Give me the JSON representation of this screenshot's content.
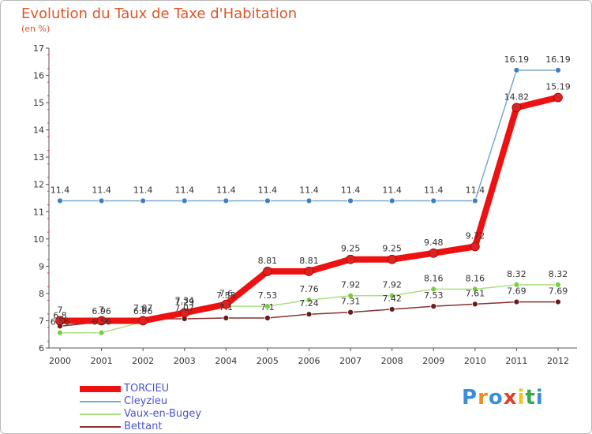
{
  "header": {
    "title": "Evolution du Taux de Taxe d'Habitation",
    "subtitle": "(en %)"
  },
  "brand": {
    "text": "Proxiti",
    "colors": [
      "#3a8fd8",
      "#f08a1c",
      "#3a8fd8",
      "#e83a2a",
      "#f0c21c",
      "#3aa84a",
      "#3a8fd8"
    ]
  },
  "chart_data": {
    "type": "line",
    "categories": [
      "2000",
      "2001",
      "2002",
      "2003",
      "2004",
      "2005",
      "2006",
      "2007",
      "2008",
      "2009",
      "2010",
      "2011",
      "2012"
    ],
    "ylim": [
      6,
      17
    ],
    "yticks": [
      "6",
      "7",
      "8",
      "9",
      "10",
      "11",
      "12",
      "13",
      "14",
      "15",
      "16",
      "17"
    ],
    "grid": false,
    "legend_position": "bottom-left",
    "series": [
      {
        "name": "TORCIEU",
        "color": "#ee1111",
        "marker": "#dd2222",
        "values": [
          7,
          7,
          7,
          7.29,
          7.6,
          8.81,
          8.81,
          9.25,
          9.25,
          9.48,
          9.72,
          14.82,
          15.19
        ],
        "labels": [
          "7",
          "7",
          "7",
          "7.29",
          "7.6",
          "8.81",
          "8.81",
          "9.25",
          "9.25",
          "9.48",
          "9.72",
          "14.82",
          "15.19"
        ]
      },
      {
        "name": "Cleyzieu",
        "color": "#7aa8d0",
        "marker": "#3a80c0",
        "values": [
          11.4,
          11.4,
          11.4,
          11.4,
          11.4,
          11.4,
          11.4,
          11.4,
          11.4,
          11.4,
          11.4,
          16.19,
          16.19
        ],
        "labels": [
          "11.4",
          "11.4",
          "11.4",
          "11.4",
          "11.4",
          "11.4",
          "11.4",
          "11.4",
          "11.4",
          "11.4",
          "11.4",
          "16.19",
          "16.19"
        ]
      },
      {
        "name": "Vaux-en-Bugey",
        "color": "#a8e080",
        "marker": "#7acc40",
        "values": [
          6.56,
          6.56,
          6.96,
          7.34,
          7.53,
          7.53,
          7.76,
          7.92,
          7.92,
          8.16,
          8.16,
          8.32,
          8.32
        ],
        "labels": [
          "6.56",
          "6.56",
          "6.96",
          "7.34",
          "7.53",
          "7.53",
          "7.76",
          "7.92",
          "7.92",
          "8.16",
          "8.16",
          "8.32",
          "8.32"
        ]
      },
      {
        "name": "Bettant",
        "color": "#8a3030",
        "marker": "#6a1a1a",
        "values": [
          6.8,
          6.96,
          7.07,
          7.07,
          7.1,
          7.1,
          7.24,
          7.31,
          7.42,
          7.53,
          7.61,
          7.69,
          7.69
        ],
        "labels": [
          "6.8",
          "6.96",
          "7.07",
          "7.07",
          "7.1",
          "7.1",
          "7.24",
          "7.31",
          "7.42",
          "7.53",
          "7.61",
          "7.69",
          "7.69"
        ]
      }
    ]
  }
}
